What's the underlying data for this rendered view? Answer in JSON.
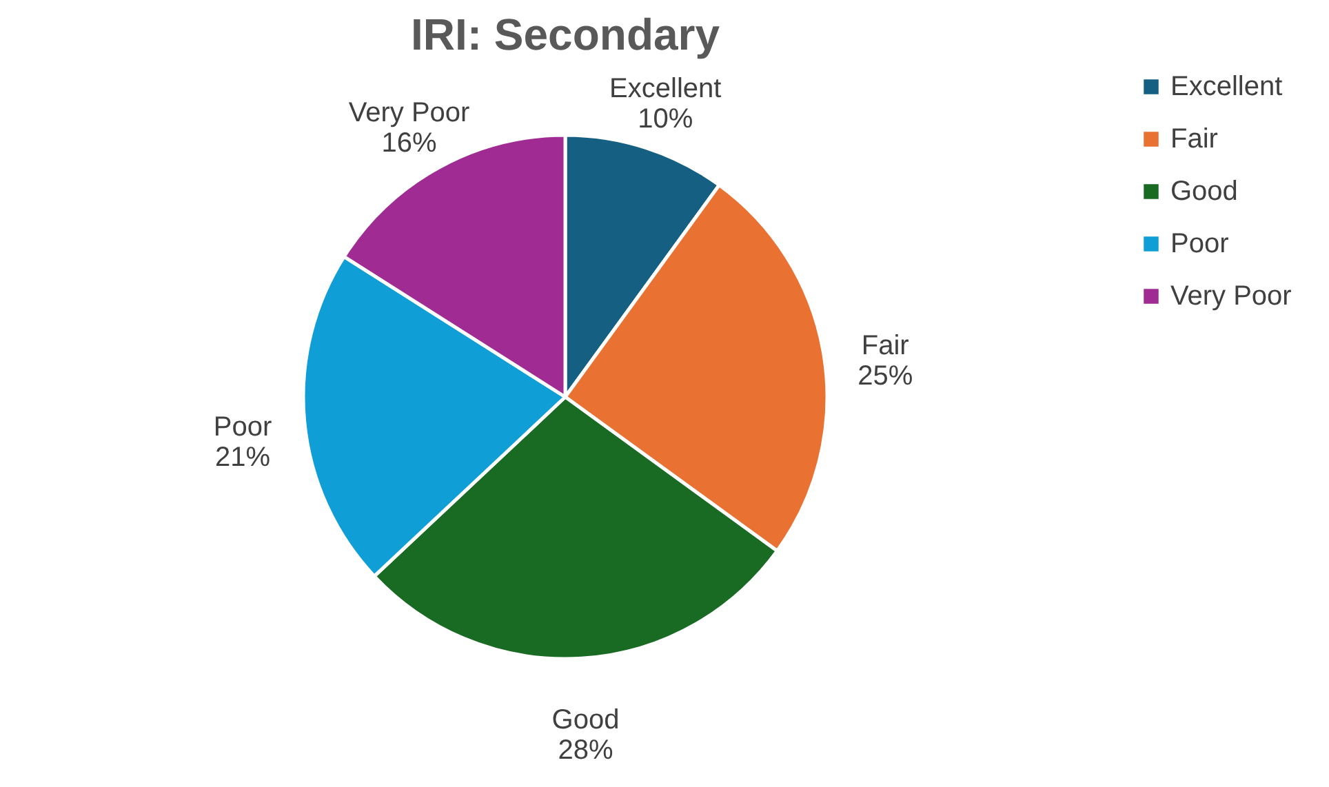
{
  "chart_data": {
    "type": "pie",
    "title": "IRI: Secondary",
    "categories": [
      "Excellent",
      "Fair",
      "Good",
      "Poor",
      "Very Poor"
    ],
    "values": [
      10,
      25,
      28,
      21,
      16
    ],
    "value_labels": [
      "10%",
      "25%",
      "28%",
      "21%",
      "16%"
    ],
    "colors": [
      "#156082",
      "#e97132",
      "#196b24",
      "#0f9ed5",
      "#a02b93"
    ],
    "legend": "right"
  }
}
